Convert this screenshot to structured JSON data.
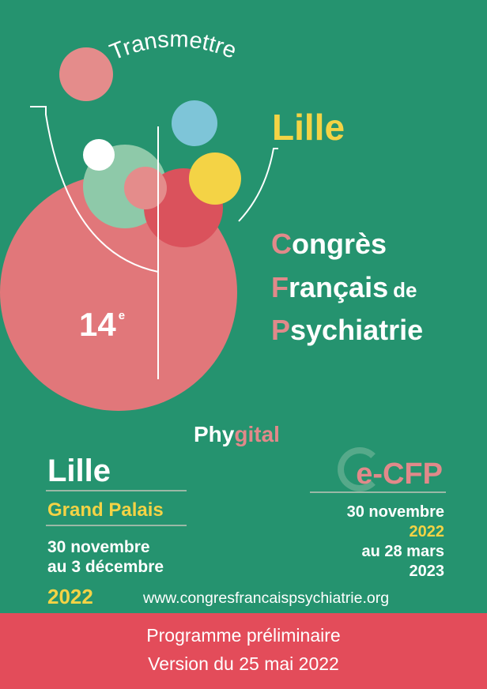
{
  "header": {
    "motto": "Transmettre",
    "city": "Lille"
  },
  "congress": {
    "line1": {
      "initial": "C",
      "rest": "ongrès"
    },
    "line2": {
      "initial": "F",
      "rest": "rançais",
      "suffix": "de"
    },
    "line3": {
      "initial": "P",
      "rest": "sychiatrie"
    },
    "edition_number": "14",
    "edition_suffix": "e"
  },
  "format": {
    "part1": "Phy",
    "part2": "gital"
  },
  "onsite": {
    "city": "Lille",
    "venue": "Grand Palais",
    "dates_line1": "30 novembre",
    "dates_line2": "au 3 décembre",
    "year": "2022"
  },
  "online": {
    "name": "e-CFP",
    "line1": "30 novembre",
    "line2": "2022",
    "line3": "au 28 mars",
    "line4": "2023"
  },
  "website": "www.congresfrancaispsychiatrie.org",
  "footer": {
    "line1": "Programme préliminaire",
    "line2": "Version du 25 mai 2022"
  },
  "colors": {
    "background": "#25936f",
    "yellow": "#f4d345",
    "pink": "#e1898a",
    "footer": "#e34c5a"
  }
}
